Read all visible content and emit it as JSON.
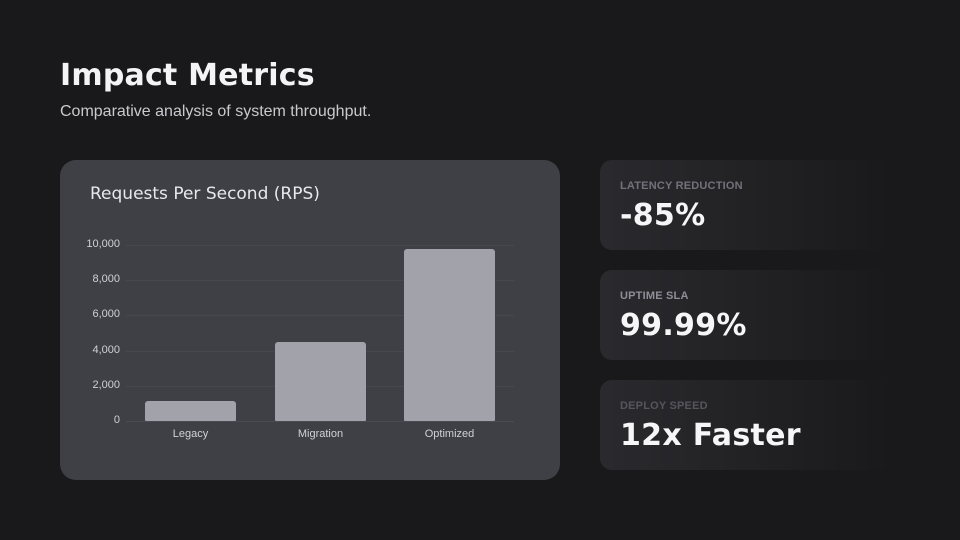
{
  "header": {
    "title": "Impact Metrics",
    "subtitle": "Comparative analysis of system throughput."
  },
  "chart": {
    "title": "Requests Per Second (RPS)",
    "y_ticks": [
      "0",
      "2,000",
      "4,000",
      "6,000",
      "8,000",
      "10,000"
    ],
    "categories": [
      "Legacy",
      "Migration",
      "Optimized"
    ],
    "bar_color": "#a2a2aa"
  },
  "chart_data": {
    "type": "bar",
    "title": "Requests Per Second (RPS)",
    "categories": [
      "Legacy",
      "Migration",
      "Optimized"
    ],
    "values": [
      1150,
      4500,
      9800
    ],
    "xlabel": "",
    "ylabel": "",
    "ylim": [
      0,
      10000
    ],
    "yticks": [
      0,
      2000,
      4000,
      6000,
      8000,
      10000
    ],
    "grid": true,
    "legend": false
  },
  "metrics": [
    {
      "label": "LATENCY REDUCTION",
      "value": "-85%",
      "label_color": "#72727a"
    },
    {
      "label": "UPTIME SLA",
      "value": "99.99%",
      "label_color": "#8e8e96"
    },
    {
      "label": "DEPLOY SPEED",
      "value": "12x Faster",
      "label_color": "#55555c"
    }
  ],
  "colors": {
    "background": "#19191b",
    "chart_card": "#3f4045",
    "bar": "#a2a2aa"
  }
}
